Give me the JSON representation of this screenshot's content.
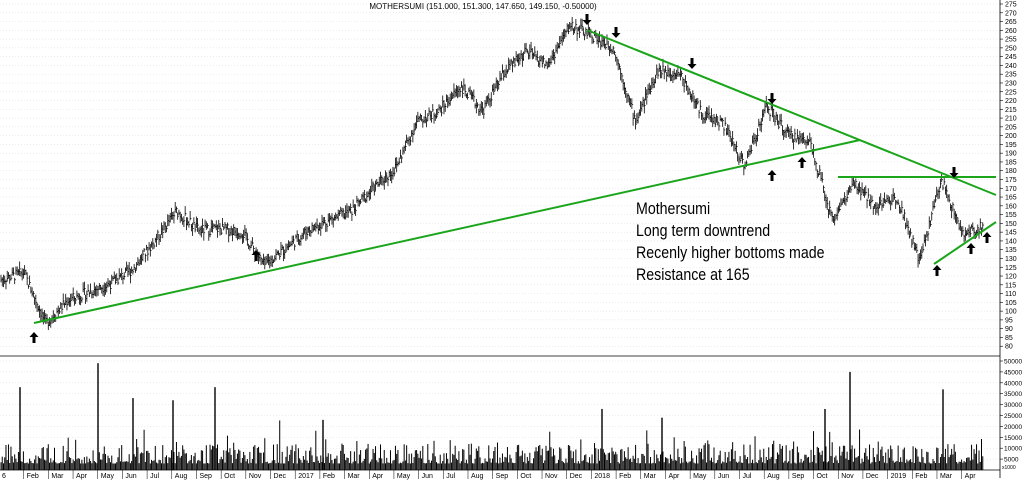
{
  "chart_data": {
    "type": "ohlc_with_volume",
    "title": "MOTHERSUMI (151.000, 151.300, 147.650, 149.150, -0.50000)",
    "price_axis": {
      "min": 75,
      "max": 275,
      "ticks": [
        80,
        85,
        90,
        95,
        100,
        105,
        110,
        115,
        120,
        125,
        130,
        135,
        140,
        145,
        150,
        155,
        160,
        165,
        170,
        175,
        180,
        185,
        190,
        195,
        200,
        205,
        210,
        215,
        220,
        225,
        230,
        235,
        240,
        245,
        250,
        255,
        260,
        265,
        270,
        275
      ]
    },
    "volume_axis": {
      "min": 0,
      "max": 50000,
      "ticks": [
        5000,
        10000,
        15000,
        20000,
        25000,
        30000,
        35000,
        40000,
        45000,
        50000
      ],
      "scale_label": "x1000"
    },
    "x_labels": [
      "6",
      "Feb",
      "Mar",
      "Apr",
      "May",
      "Jun",
      "Jul",
      "Aug",
      "Sep",
      "Oct",
      "Nov",
      "Dec",
      "2017",
      "Feb",
      "Mar",
      "Apr",
      "May",
      "Jun",
      "Jul",
      "Aug",
      "Sep",
      "Oct",
      "Nov",
      "Dec",
      "2018",
      "Feb",
      "Mar",
      "Apr",
      "May",
      "Jun",
      "Jul",
      "Aug",
      "Sep",
      "Oct",
      "Nov",
      "Dec",
      "2019",
      "Feb",
      "Mar",
      "Apr"
    ],
    "price_path": [
      [
        "Jan 2016",
        118
      ],
      [
        "Feb 2016",
        122
      ],
      [
        "early Mar 2016",
        93
      ],
      [
        "mid Mar 2016",
        106
      ],
      [
        "Apr 2016",
        111
      ],
      [
        "May 2016",
        116
      ],
      [
        "Jun 2016",
        124
      ],
      [
        "Jul 2016",
        140
      ],
      [
        "Aug 2016",
        157
      ],
      [
        "Sep 2016",
        146
      ],
      [
        "Oct 2016",
        147
      ],
      [
        "Nov 2016",
        145
      ],
      [
        "late Nov 2016",
        126
      ],
      [
        "Dec 2016",
        136
      ],
      [
        "Jan 2017",
        146
      ],
      [
        "Feb 2017",
        152
      ],
      [
        "Mar 2017",
        157
      ],
      [
        "Apr 2017",
        170
      ],
      [
        "May 2017",
        181
      ],
      [
        "Jun 2017",
        208
      ],
      [
        "Jul 2017",
        214
      ],
      [
        "Aug 2017",
        228
      ],
      [
        "Sep 2017",
        214
      ],
      [
        "Oct 2017",
        236
      ],
      [
        "Nov 2017",
        248
      ],
      [
        "Dec 2017",
        240
      ],
      [
        "early Jan 2018",
        263
      ],
      [
        "late Jan 2018",
        257
      ],
      [
        "Feb 2018",
        250
      ],
      [
        "Mar 2018",
        208
      ],
      [
        "Apr 2018",
        237
      ],
      [
        "early May 2018",
        236
      ],
      [
        "May 2018",
        213
      ],
      [
        "Jun 2018",
        207
      ],
      [
        "Jul 2018",
        183
      ],
      [
        "Aug 2018",
        217
      ],
      [
        "Aug 2018 late",
        200
      ],
      [
        "Sep 2018",
        197
      ],
      [
        "Oct 2018",
        152
      ],
      [
        "Nov 2018",
        172
      ],
      [
        "Dec 2018",
        160
      ],
      [
        "Jan 2019",
        165
      ],
      [
        "Feb 2019",
        128
      ],
      [
        "Mar 2019",
        175
      ],
      [
        "late Mar 2019",
        143
      ],
      [
        "Apr 2019",
        149
      ]
    ],
    "volume_spikes": [
      38000,
      49000,
      33000,
      32000,
      38000,
      23000,
      28000,
      24000,
      28000,
      45000,
      37000
    ],
    "trendlines": [
      {
        "from": [
          "Mar 2016",
          92
        ],
        "to": [
          "Aug 2018",
          200
        ]
      },
      {
        "from": [
          "Dec 2017",
          265
        ],
        "to": [
          "Apr 2019",
          166
        ]
      },
      {
        "from": [
          "Oct 2018",
          178
        ],
        "to": [
          "Apr 2019",
          178
        ]
      },
      {
        "from": [
          "Feb 2019",
          128
        ],
        "to": [
          "Apr 2019",
          149
        ]
      }
    ],
    "markers": [
      {
        "dir": "up",
        "label": "Mar 2016"
      },
      {
        "dir": "up",
        "label": "Nov 2016"
      },
      {
        "dir": "down",
        "label": "Dec 2017"
      },
      {
        "dir": "down",
        "label": "Jan 2018"
      },
      {
        "dir": "down",
        "label": "Apr 2018"
      },
      {
        "dir": "up",
        "label": "Jul 2018"
      },
      {
        "dir": "down",
        "label": "Aug 2018"
      },
      {
        "dir": "up",
        "label": "Sep 2018"
      },
      {
        "dir": "down",
        "label": "Mar 2019"
      },
      {
        "dir": "up",
        "label": "Feb 2019"
      },
      {
        "dir": "up",
        "label": "Mar 2019 late"
      },
      {
        "dir": "up",
        "label": "Apr 2019"
      }
    ],
    "colors": {
      "trendline": "#1aa51a",
      "bars": "#000000",
      "grid": "#d8d8d8"
    }
  },
  "annotation": {
    "line1": "Mothersumi",
    "line2": "Long term downtrend",
    "line3": "Recenly higher bottoms made",
    "line4": "Resistance at 165"
  }
}
